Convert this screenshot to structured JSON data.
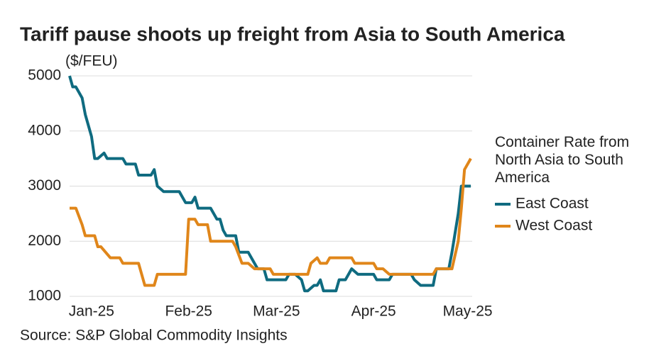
{
  "chart_data": {
    "type": "line",
    "title": "Tariff pause shoots up freight from Asia to South America",
    "y_label": "($/FEU)",
    "source": "Source: S&P Global Commodity Insights",
    "legend_title": "Container Rate from North Asia to South America",
    "xlim": [
      -7,
      121
    ],
    "xticks": [
      {
        "value": 0,
        "label": "Jan-25"
      },
      {
        "value": 31,
        "label": "Feb-25"
      },
      {
        "value": 59,
        "label": "Mar-25"
      },
      {
        "value": 90,
        "label": "Apr-25"
      },
      {
        "value": 120,
        "label": "May-25"
      }
    ],
    "ylim": [
      1000,
      5000
    ],
    "yticks": [
      1000,
      2000,
      3000,
      4000,
      5000
    ],
    "grid": true,
    "series": [
      {
        "name": "East Coast",
        "color": "#0f6b80",
        "x": [
          -7,
          -6,
          -5,
          -3,
          -2,
          0,
          1,
          2,
          4,
          5,
          10,
          11,
          14,
          15,
          19,
          20,
          21,
          23,
          28,
          30,
          32,
          33,
          34,
          38,
          40,
          41,
          42,
          43,
          46,
          47,
          50,
          52,
          53,
          55,
          56,
          62,
          63,
          65,
          67,
          68,
          69,
          71,
          72,
          73,
          74,
          78,
          79,
          81,
          83,
          85,
          90,
          91,
          95,
          96,
          102,
          103,
          105,
          109,
          110,
          114,
          115,
          117,
          118,
          121
        ],
        "values": [
          5000,
          4800,
          4800,
          4600,
          4300,
          3900,
          3500,
          3500,
          3600,
          3500,
          3500,
          3400,
          3400,
          3200,
          3200,
          3300,
          3000,
          2900,
          2900,
          2700,
          2700,
          2800,
          2600,
          2600,
          2400,
          2400,
          2200,
          2100,
          2100,
          1800,
          1800,
          1600,
          1500,
          1500,
          1300,
          1300,
          1400,
          1400,
          1300,
          1100,
          1100,
          1200,
          1200,
          1300,
          1100,
          1100,
          1300,
          1300,
          1500,
          1400,
          1400,
          1300,
          1300,
          1400,
          1400,
          1300,
          1200,
          1200,
          1500,
          1500,
          1800,
          2500,
          3000,
          3000
        ]
      },
      {
        "name": "West Coast",
        "color": "#e0861a",
        "x": [
          -7,
          -5,
          -3,
          -2,
          1,
          2,
          3,
          6,
          9,
          10,
          15,
          17,
          20,
          21,
          30,
          31,
          33,
          34,
          37,
          38,
          45,
          46,
          48,
          50,
          52,
          57,
          58,
          69,
          70,
          72,
          73,
          75,
          76,
          83,
          84,
          90,
          91,
          93,
          95,
          109,
          110,
          115,
          117,
          118,
          119,
          121
        ],
        "values": [
          2600,
          2600,
          2300,
          2100,
          2100,
          1900,
          1900,
          1700,
          1700,
          1600,
          1600,
          1200,
          1200,
          1400,
          1400,
          2400,
          2400,
          2300,
          2300,
          2000,
          2000,
          1900,
          1600,
          1600,
          1500,
          1500,
          1400,
          1400,
          1600,
          1700,
          1600,
          1600,
          1700,
          1700,
          1600,
          1600,
          1500,
          1500,
          1400,
          1400,
          1500,
          1500,
          2000,
          2600,
          3300,
          3500
        ]
      }
    ]
  }
}
